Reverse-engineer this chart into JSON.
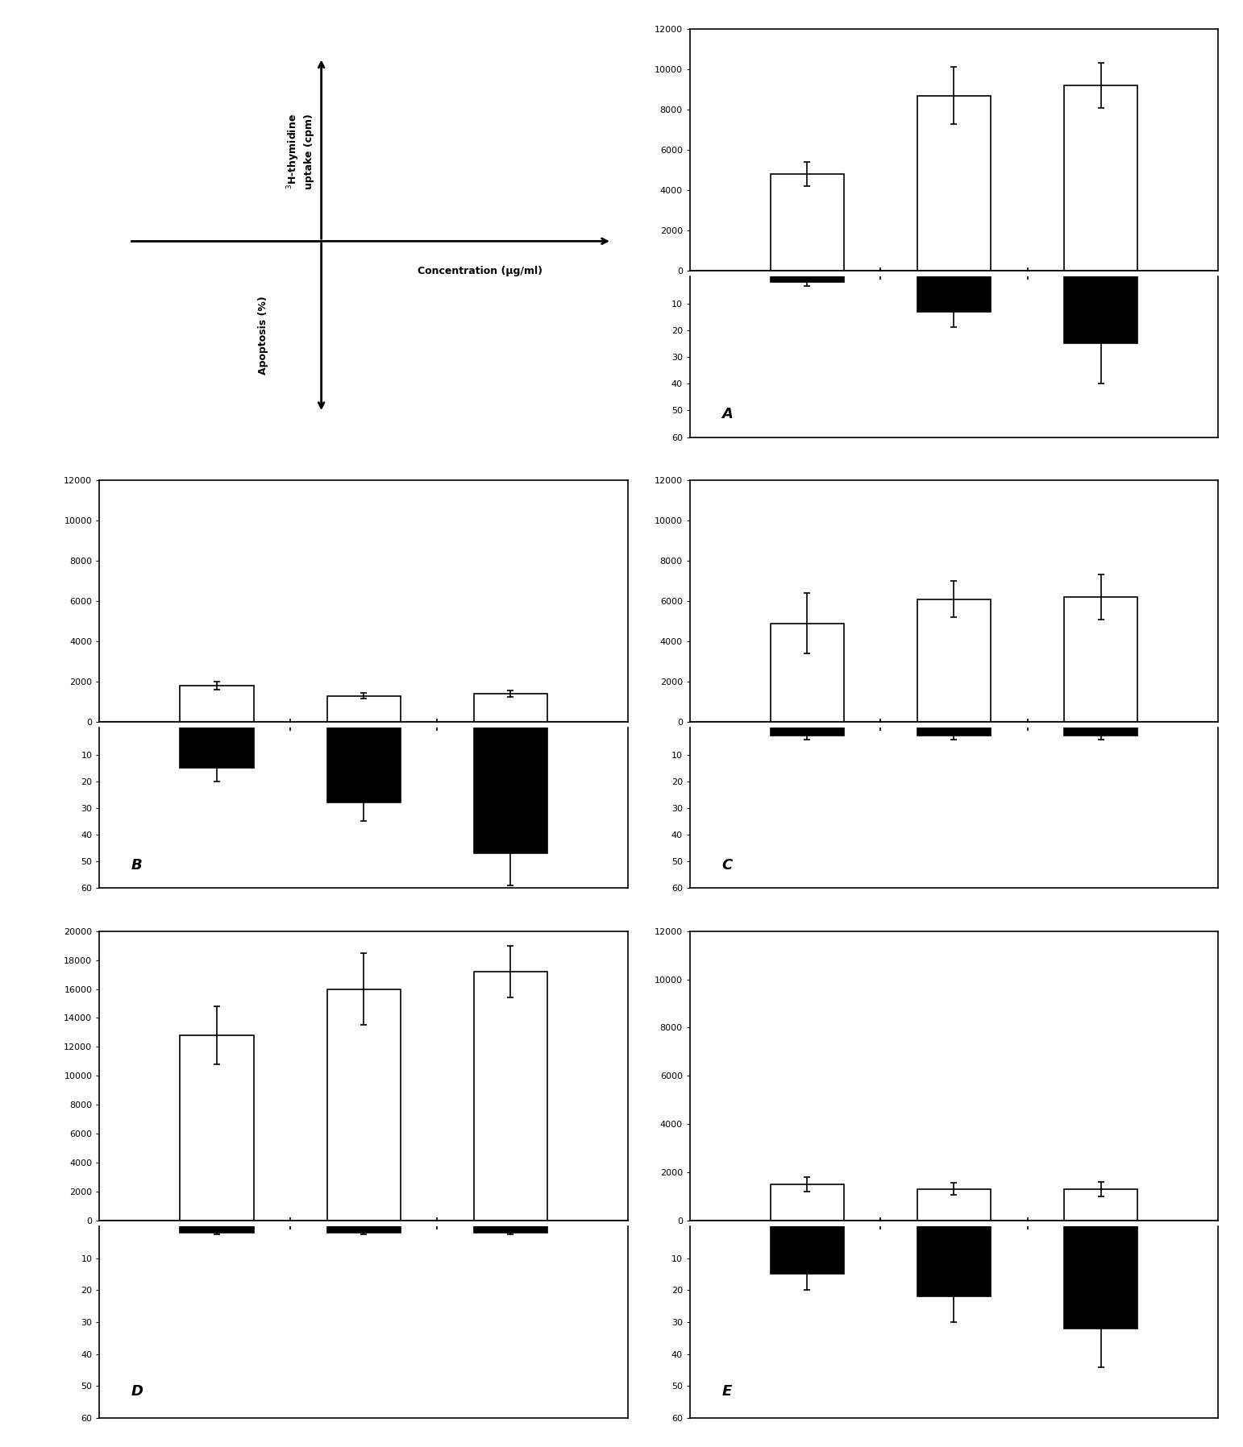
{
  "panels": {
    "A": {
      "label": "A",
      "col": 1,
      "row": 0,
      "upper_yticks": [
        0,
        2000,
        4000,
        6000,
        8000,
        10000,
        12000
      ],
      "lower_yticks": [
        10,
        20,
        30,
        40,
        50,
        60
      ],
      "upper_ylim": [
        0,
        12000
      ],
      "lower_ylim": [
        60,
        0
      ],
      "bars": [
        {
          "x": 1,
          "white_val": 4800,
          "white_err": 600,
          "black_val": 2,
          "black_err": 1.5
        },
        {
          "x": 2,
          "white_val": 8700,
          "white_err": 1400,
          "black_val": 13,
          "black_err": 6
        },
        {
          "x": 3,
          "white_val": 9200,
          "white_err": 1100,
          "black_val": 25,
          "black_err": 15
        }
      ]
    },
    "B": {
      "label": "B",
      "col": 0,
      "row": 1,
      "upper_yticks": [
        0,
        2000,
        4000,
        6000,
        8000,
        10000,
        12000
      ],
      "lower_yticks": [
        10,
        20,
        30,
        40,
        50,
        60
      ],
      "upper_ylim": [
        0,
        12000
      ],
      "lower_ylim": [
        60,
        0
      ],
      "bars": [
        {
          "x": 1,
          "white_val": 1800,
          "white_err": 200,
          "black_val": 15,
          "black_err": 5
        },
        {
          "x": 2,
          "white_val": 1300,
          "white_err": 150,
          "black_val": 28,
          "black_err": 7
        },
        {
          "x": 3,
          "white_val": 1400,
          "white_err": 150,
          "black_val": 47,
          "black_err": 12
        }
      ]
    },
    "C": {
      "label": "C",
      "col": 1,
      "row": 1,
      "upper_yticks": [
        0,
        2000,
        4000,
        6000,
        8000,
        10000,
        12000
      ],
      "lower_yticks": [
        10,
        20,
        30,
        40,
        50,
        60
      ],
      "upper_ylim": [
        0,
        12000
      ],
      "lower_ylim": [
        60,
        0
      ],
      "bars": [
        {
          "x": 1,
          "white_val": 4900,
          "white_err": 1500,
          "black_val": 3,
          "black_err": 1.5
        },
        {
          "x": 2,
          "white_val": 6100,
          "white_err": 900,
          "black_val": 3,
          "black_err": 1.5
        },
        {
          "x": 3,
          "white_val": 6200,
          "white_err": 1100,
          "black_val": 3,
          "black_err": 1.5
        }
      ]
    },
    "D": {
      "label": "D",
      "col": 0,
      "row": 2,
      "upper_yticks": [
        0,
        2000,
        4000,
        6000,
        8000,
        10000,
        12000,
        14000,
        16000,
        18000,
        20000
      ],
      "lower_yticks": [
        10,
        20,
        30,
        40,
        50,
        60
      ],
      "upper_ylim": [
        0,
        20000
      ],
      "lower_ylim": [
        60,
        0
      ],
      "bars": [
        {
          "x": 1,
          "white_val": 12800,
          "white_err": 2000,
          "black_val": 2,
          "black_err": 0.5
        },
        {
          "x": 2,
          "white_val": 16000,
          "white_err": 2500,
          "black_val": 2,
          "black_err": 0.5
        },
        {
          "x": 3,
          "white_val": 17200,
          "white_err": 1800,
          "black_val": 2,
          "black_err": 0.5
        }
      ]
    },
    "E": {
      "label": "E",
      "col": 1,
      "row": 2,
      "upper_yticks": [
        0,
        2000,
        4000,
        6000,
        8000,
        10000,
        12000
      ],
      "lower_yticks": [
        10,
        20,
        30,
        40,
        50,
        60
      ],
      "upper_ylim": [
        0,
        12000
      ],
      "lower_ylim": [
        60,
        0
      ],
      "bars": [
        {
          "x": 1,
          "white_val": 1500,
          "white_err": 300,
          "black_val": 15,
          "black_err": 5
        },
        {
          "x": 2,
          "white_val": 1300,
          "white_err": 250,
          "black_val": 22,
          "black_err": 8
        },
        {
          "x": 3,
          "white_val": 1300,
          "white_err": 300,
          "black_val": 32,
          "black_err": 12
        }
      ]
    }
  },
  "background_color": "#ffffff",
  "bar_width": 0.5,
  "black_color": "#000000",
  "white_color": "#ffffff",
  "edge_color": "#000000",
  "tick_label_fontsize": 8,
  "label_fontsize": 13,
  "tick_size": 3,
  "linewidth": 1.2,
  "cap_size": 3
}
